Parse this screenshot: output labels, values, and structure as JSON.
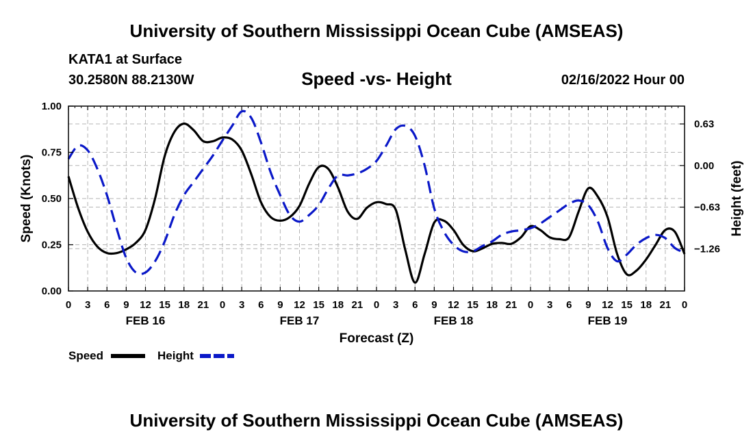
{
  "header": {
    "title": "University of Southern Mississippi Ocean Cube (AMSEAS)",
    "station": "KATA1 at Surface",
    "coords": "30.2580N  88.2130W",
    "chart_title": "Speed -vs- Height",
    "date": "02/16/2022 Hour 00"
  },
  "footer": {
    "title": "University of Southern Mississippi Ocean Cube (AMSEAS)"
  },
  "colors": {
    "speed": "#000000",
    "height": "#0a18c8",
    "grid": "#b4b4b4"
  },
  "chart_data": {
    "type": "line",
    "title": "Speed -vs- Height",
    "xlabel": "Forecast (Z)",
    "ylabel_left": "Speed (Knots)",
    "ylabel_right": "Height (feet)",
    "x_range_hours": [
      0,
      96
    ],
    "x_tick_labels": [
      "0",
      "3",
      "6",
      "9",
      "12",
      "15",
      "18",
      "21",
      "0",
      "3",
      "6",
      "9",
      "12",
      "15",
      "18",
      "21",
      "0",
      "3",
      "6",
      "9",
      "12",
      "15",
      "18",
      "21",
      "0",
      "3",
      "6",
      "9",
      "12",
      "15",
      "18",
      "21",
      "0"
    ],
    "day_labels": [
      {
        "label": "FEB 16",
        "hour": 12
      },
      {
        "label": "FEB 17",
        "hour": 36
      },
      {
        "label": "FEB 18",
        "hour": 60
      },
      {
        "label": "FEB 19",
        "hour": 84
      }
    ],
    "y_left": {
      "min": 0,
      "max": 1.0,
      "ticks": [
        0,
        0.25,
        0.5,
        0.75,
        1.0
      ],
      "tick_labels": [
        "0.00",
        "0.25",
        "0.50",
        "0.75",
        "1.00"
      ]
    },
    "y_right": {
      "min": -1.9,
      "max": 0.9,
      "ticks": [
        0.63,
        0.0,
        -0.63,
        -1.26
      ],
      "tick_labels": [
        "0.63",
        "0.00",
        "−0.63",
        "−1.26"
      ]
    },
    "grid": true,
    "legend": {
      "position": "bottom-left",
      "entries": [
        "Speed",
        "Height"
      ]
    },
    "series": [
      {
        "name": "Speed",
        "axis": "left",
        "style": "solid",
        "x": [
          0,
          1.5,
          3,
          4.5,
          6,
          7.5,
          9,
          10.5,
          12,
          13.5,
          15,
          16.5,
          18,
          19.5,
          21,
          22.5,
          24,
          25.5,
          27,
          28.5,
          30,
          31.5,
          33,
          34.5,
          36,
          37.5,
          39,
          40.5,
          42,
          43.5,
          45,
          46.5,
          48,
          49.5,
          51,
          52.5,
          54,
          55.5,
          57,
          58.5,
          60,
          61.5,
          63,
          64.5,
          66,
          67.5,
          69,
          70.5,
          72,
          73.5,
          75,
          76.5,
          78,
          79.5,
          81,
          82.5,
          84,
          85.5,
          87,
          88.5,
          90,
          91.5,
          93,
          94.5,
          96
        ],
        "values": [
          0.62,
          0.45,
          0.32,
          0.24,
          0.205,
          0.205,
          0.225,
          0.26,
          0.33,
          0.5,
          0.73,
          0.86,
          0.905,
          0.87,
          0.81,
          0.81,
          0.83,
          0.82,
          0.76,
          0.63,
          0.48,
          0.4,
          0.38,
          0.4,
          0.46,
          0.58,
          0.67,
          0.66,
          0.56,
          0.43,
          0.39,
          0.45,
          0.48,
          0.47,
          0.44,
          0.22,
          0.045,
          0.2,
          0.37,
          0.38,
          0.33,
          0.25,
          0.215,
          0.23,
          0.255,
          0.26,
          0.255,
          0.29,
          0.35,
          0.33,
          0.29,
          0.28,
          0.29,
          0.43,
          0.555,
          0.51,
          0.4,
          0.2,
          0.09,
          0.11,
          0.17,
          0.25,
          0.33,
          0.32,
          0.2
        ]
      },
      {
        "name": "Height",
        "axis": "right",
        "style": "dashed",
        "x": [
          0,
          1.5,
          3,
          4.5,
          6,
          7.5,
          9,
          10.5,
          12,
          13.5,
          15,
          16.5,
          18,
          19.5,
          21,
          22.5,
          24,
          25.5,
          27,
          28.5,
          30,
          31.5,
          33,
          34.5,
          36,
          37.5,
          39,
          40.5,
          42,
          43.5,
          45,
          46.5,
          48,
          49.5,
          51,
          52.5,
          54,
          55.5,
          57,
          58.5,
          60,
          61.5,
          63,
          64.5,
          66,
          67.5,
          69,
          70.5,
          72,
          73.5,
          75,
          76.5,
          78,
          79.5,
          81,
          82.5,
          84,
          85.5,
          87,
          88.5,
          90,
          91.5,
          93,
          94.5,
          96
        ],
        "values": [
          0.1,
          0.3,
          0.23,
          -0.05,
          -0.45,
          -0.95,
          -1.4,
          -1.62,
          -1.62,
          -1.45,
          -1.15,
          -0.75,
          -0.45,
          -0.25,
          -0.05,
          0.15,
          0.38,
          0.6,
          0.82,
          0.72,
          0.35,
          -0.1,
          -0.45,
          -0.75,
          -0.85,
          -0.75,
          -0.6,
          -0.35,
          -0.15,
          -0.15,
          -0.12,
          -0.05,
          0.07,
          0.3,
          0.55,
          0.6,
          0.45,
          0.0,
          -0.65,
          -1.0,
          -1.2,
          -1.3,
          -1.3,
          -1.22,
          -1.15,
          -1.05,
          -1.0,
          -0.98,
          -0.95,
          -0.88,
          -0.78,
          -0.68,
          -0.58,
          -0.53,
          -0.6,
          -0.85,
          -1.25,
          -1.45,
          -1.35,
          -1.2,
          -1.1,
          -1.05,
          -1.1,
          -1.25,
          -1.32
        ]
      }
    ]
  }
}
